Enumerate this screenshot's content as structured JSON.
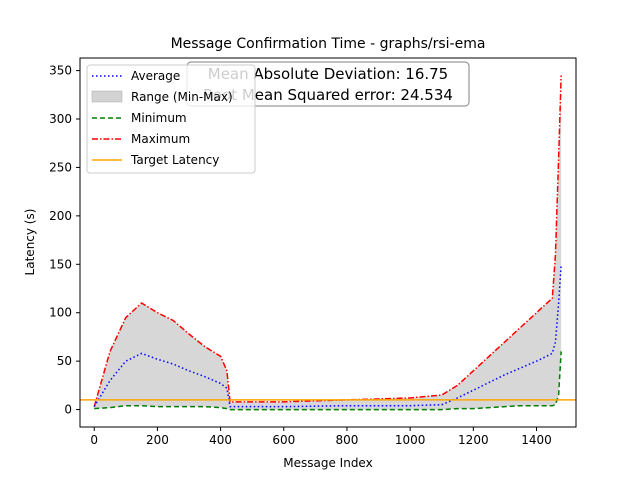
{
  "chart_data": {
    "type": "line",
    "title": "Message Confirmation Time - graphs/rsi-ema",
    "xlabel": "Message Index",
    "ylabel": "Latency (s)",
    "xlim": [
      -45,
      1525
    ],
    "ylim": [
      -18,
      363
    ],
    "x_ticks": [
      0,
      200,
      400,
      600,
      800,
      1000,
      1200,
      1400
    ],
    "y_ticks": [
      0,
      50,
      100,
      150,
      200,
      250,
      300,
      350
    ],
    "grid": false,
    "legend_position": "upper-left",
    "stats_box": {
      "lines": [
        "Mean Absolute Deviation: 16.75",
        "Root Mean Squared error: 24.534"
      ]
    },
    "target_latency": 10,
    "series": [
      {
        "name": "Average",
        "style": "dotted",
        "color": "#0000ff",
        "x": [
          0,
          50,
          100,
          150,
          200,
          250,
          300,
          350,
          400,
          420,
          430,
          600,
          800,
          1000,
          1100,
          1150,
          1200,
          1250,
          1300,
          1350,
          1400,
          1450,
          1460,
          1470,
          1478
        ],
        "y": [
          3,
          30,
          50,
          58,
          52,
          47,
          40,
          34,
          27,
          22,
          3,
          3,
          4,
          4,
          5,
          12,
          20,
          28,
          36,
          43,
          50,
          58,
          70,
          110,
          150
        ]
      },
      {
        "name": "Range (Min-Max)",
        "style": "fill",
        "color": "#d3d3d3",
        "x": [
          0,
          50,
          100,
          150,
          200,
          250,
          300,
          350,
          400,
          420,
          430,
          600,
          800,
          1000,
          1100,
          1150,
          1200,
          1250,
          1300,
          1350,
          1400,
          1450,
          1460,
          1470,
          1478
        ],
        "y_low": [
          1,
          2,
          4,
          4,
          3,
          3,
          3,
          3,
          2,
          1,
          0,
          0,
          0,
          0,
          0,
          1,
          1,
          2,
          3,
          4,
          4,
          4,
          5,
          15,
          60
        ],
        "y_high": [
          3,
          60,
          95,
          110,
          100,
          92,
          78,
          65,
          55,
          40,
          8,
          8,
          10,
          12,
          15,
          25,
          40,
          55,
          70,
          85,
          100,
          115,
          160,
          260,
          345
        ]
      },
      {
        "name": "Minimum",
        "style": "dashed",
        "color": "#008000",
        "x": [
          0,
          50,
          100,
          150,
          200,
          250,
          300,
          350,
          400,
          420,
          430,
          600,
          800,
          1000,
          1100,
          1150,
          1200,
          1250,
          1300,
          1350,
          1400,
          1450,
          1460,
          1470,
          1478
        ],
        "y": [
          1,
          2,
          4,
          4,
          3,
          3,
          3,
          3,
          2,
          1,
          0,
          0,
          0,
          0,
          0,
          1,
          1,
          2,
          3,
          4,
          4,
          4,
          5,
          15,
          60
        ]
      },
      {
        "name": "Maximum",
        "style": "dashdot",
        "color": "#ff0000",
        "x": [
          0,
          50,
          100,
          150,
          200,
          250,
          300,
          350,
          400,
          420,
          430,
          600,
          800,
          1000,
          1100,
          1150,
          1200,
          1250,
          1300,
          1350,
          1400,
          1450,
          1460,
          1470,
          1478
        ],
        "y": [
          3,
          60,
          95,
          110,
          100,
          92,
          78,
          65,
          55,
          40,
          8,
          8,
          10,
          12,
          15,
          25,
          40,
          55,
          70,
          85,
          100,
          115,
          160,
          260,
          345
        ]
      },
      {
        "name": "Target Latency",
        "style": "solid",
        "color": "#ffa500",
        "x": [
          -45,
          1525
        ],
        "y": [
          10,
          10
        ]
      }
    ]
  }
}
